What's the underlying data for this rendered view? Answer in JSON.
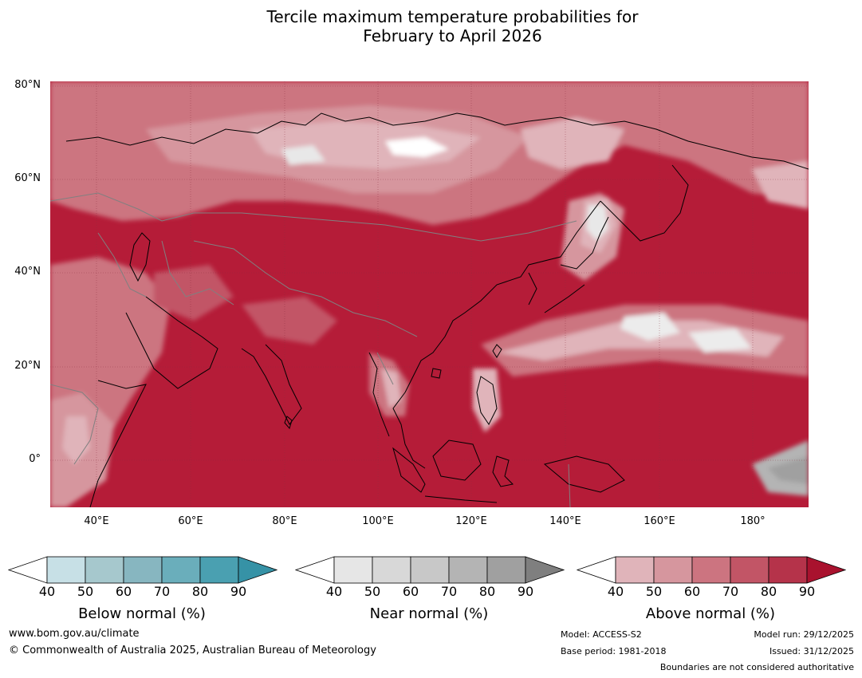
{
  "title": {
    "line1": "Tercile maximum temperature probabilities for",
    "line2": "February to April 2026"
  },
  "map": {
    "projection": "equirectangular",
    "lon_range_deg_e": [
      30,
      192
    ],
    "lat_range_deg": [
      -10,
      81
    ],
    "lat_labels": [
      "80°N",
      "60°N",
      "40°N",
      "20°N",
      "0°"
    ],
    "lon_labels": [
      "40°E",
      "60°E",
      "80°E",
      "100°E",
      "120°E",
      "140°E",
      "160°E",
      "180°"
    ],
    "dominant_category": "Above normal",
    "layers": [
      "probability-shading",
      "coastlines",
      "country-borders",
      "graticule"
    ]
  },
  "colorbars": [
    {
      "name": "below-normal",
      "title": "Below normal (%)",
      "ticks": [
        "40",
        "50",
        "60",
        "70",
        "80",
        "90"
      ],
      "colors": [
        "#ffffff",
        "#c7e0e6",
        "#a6c8cd",
        "#87b6c0",
        "#6aaebb",
        "#4aa0b1",
        "#3692a6"
      ]
    },
    {
      "name": "near-normal",
      "title": "Near normal (%)",
      "ticks": [
        "40",
        "50",
        "60",
        "70",
        "80",
        "90"
      ],
      "colors": [
        "#ffffff",
        "#e6e6e6",
        "#d8d8d8",
        "#c8c8c8",
        "#b4b4b4",
        "#a0a0a0",
        "#7f7f7f"
      ]
    },
    {
      "name": "above-normal",
      "title": "Above normal (%)",
      "ticks": [
        "40",
        "50",
        "60",
        "70",
        "80",
        "90"
      ],
      "colors": [
        "#ffffff",
        "#e0b4ba",
        "#d6969e",
        "#cc7480",
        "#c25566",
        "#b5334a",
        "#a9122e"
      ]
    }
  ],
  "footer": {
    "website": "www.bom.gov.au/climate",
    "copyright": "© Commonwealth of Australia 2025, Australian Bureau of Meteorology",
    "model": "Model: ACCESS-S2",
    "base_period": "Base period: 1981-2018",
    "model_run": "Model run: 29/12/2025",
    "issued": "Issued: 31/12/2025",
    "disclaimer": "Boundaries are not considered authoritative"
  }
}
